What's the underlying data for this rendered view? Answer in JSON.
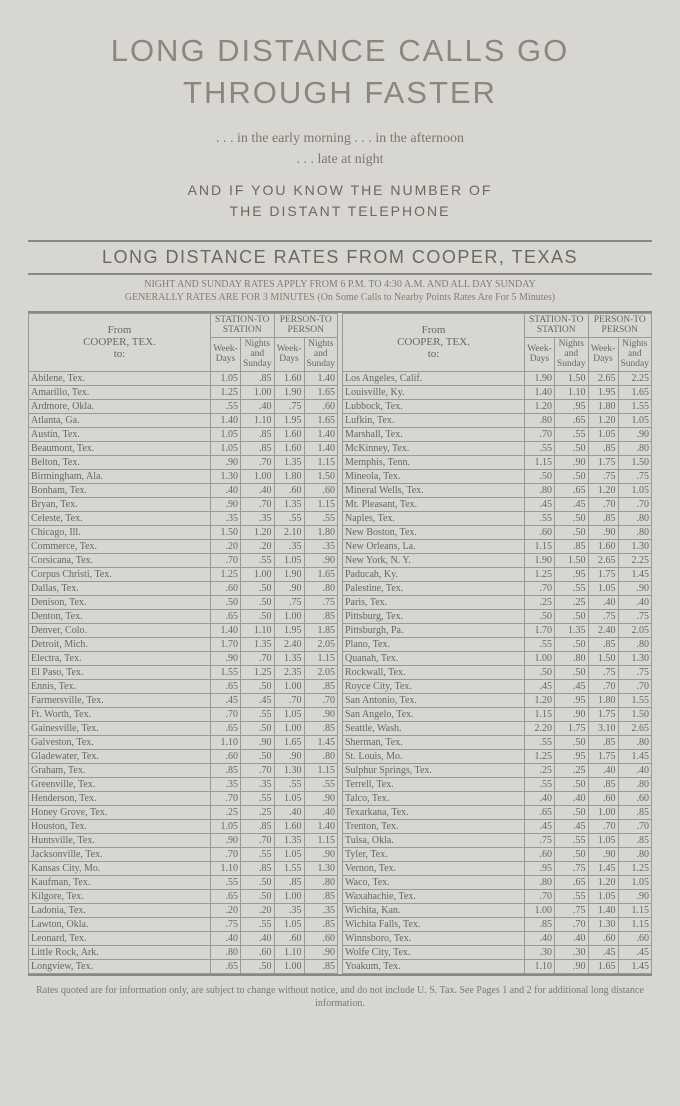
{
  "title_line1": "LONG DISTANCE CALLS GO",
  "title_line2": "THROUGH FASTER",
  "sub1": ". . . in the early morning   . . . in the afternoon",
  "sub2": ". . . late at night",
  "sub3a": "AND  IF  YOU  KNOW  THE  NUMBER  OF",
  "sub3b": "THE  DISTANT  TELEPHONE",
  "section_title": "LONG DISTANCE RATES FROM COOPER, TEXAS",
  "section_note1": "NIGHT AND SUNDAY RATES APPLY FROM 6 P.M. TO 4:30 A.M. AND ALL DAY SUNDAY",
  "section_note2": "GENERALLY RATES ARE FOR 3 MINUTES (On Some Calls to Nearby Points Rates Are For 5 Minutes)",
  "hdr_from": "From",
  "hdr_cooper": "COOPER, TEX.",
  "hdr_to": "to:",
  "hdr_sts": "STATION-TO STATION",
  "hdr_ptp": "PERSON-TO PERSON",
  "hdr_wd": "Week-Days",
  "hdr_ns": "Nights and Sunday",
  "footer": "Rates quoted are for information only, are subject to change without notice, and do not include U. S. Tax.\nSee Pages 1 and 2 for additional long distance information.",
  "left": [
    {
      "c": "Abilene, Tex.",
      "a": "1.05",
      "b": ".85",
      "d": "1.60",
      "e": "1.40"
    },
    {
      "c": "Amarillo, Tex.",
      "a": "1.25",
      "b": "1.00",
      "d": "1.90",
      "e": "1.65"
    },
    {
      "c": "Ardmore, Okla.",
      "a": ".55",
      "b": ".40",
      "d": ".75",
      "e": ".60"
    },
    {
      "c": "Atlanta, Ga.",
      "a": "1.40",
      "b": "1.10",
      "d": "1.95",
      "e": "1.65"
    },
    {
      "c": "Austin, Tex.",
      "a": "1.05",
      "b": ".85",
      "d": "1.60",
      "e": "1.40"
    },
    {
      "c": "Beaumont, Tex.",
      "a": "1.05",
      "b": ".85",
      "d": "1.60",
      "e": "1.40"
    },
    {
      "c": "Belton, Tex.",
      "a": ".90",
      "b": ".70",
      "d": "1.35",
      "e": "1.15"
    },
    {
      "c": "Birmingham, Ala.",
      "a": "1.30",
      "b": "1.00",
      "d": "1.80",
      "e": "1.50"
    },
    {
      "c": "Bonham, Tex.",
      "a": ".40",
      "b": ".40",
      "d": ".60",
      "e": ".60"
    },
    {
      "c": "Bryan, Tex.",
      "a": ".90",
      "b": ".70",
      "d": "1.35",
      "e": "1.15"
    },
    {
      "c": "Celeste, Tex.",
      "a": ".35",
      "b": ".35",
      "d": ".55",
      "e": ".55"
    },
    {
      "c": "Chicago, Ill.",
      "a": "1.50",
      "b": "1.20",
      "d": "2.10",
      "e": "1.80"
    },
    {
      "c": "Commerce, Tex.",
      "a": ".20",
      "b": ".20",
      "d": ".35",
      "e": ".35"
    },
    {
      "c": "Corsicana, Tex.",
      "a": ".70",
      "b": ".55",
      "d": "1.05",
      "e": ".90"
    },
    {
      "c": "Corpus Christi, Tex.",
      "a": "1.25",
      "b": "1.00",
      "d": "1.90",
      "e": "1.65"
    },
    {
      "c": "Dallas, Tex.",
      "a": ".60",
      "b": ".50",
      "d": ".90",
      "e": ".80"
    },
    {
      "c": "Denison, Tex.",
      "a": ".50",
      "b": ".50",
      "d": ".75",
      "e": ".75"
    },
    {
      "c": "Denton, Tex.",
      "a": ".65",
      "b": ".50",
      "d": "1.00",
      "e": ".85"
    },
    {
      "c": "Denver, Colo.",
      "a": "1.40",
      "b": "1.10",
      "d": "1.95",
      "e": "1.85"
    },
    {
      "c": "Detroit, Mich.",
      "a": "1.70",
      "b": "1.35",
      "d": "2.40",
      "e": "2.05"
    },
    {
      "c": "Electra, Tex.",
      "a": ".90",
      "b": ".70",
      "d": "1.35",
      "e": "1.15"
    },
    {
      "c": "El Paso, Tex.",
      "a": "1.55",
      "b": "1.25",
      "d": "2.35",
      "e": "2.05"
    },
    {
      "c": "Ennis, Tex.",
      "a": ".65",
      "b": ".50",
      "d": "1.00",
      "e": ".85"
    },
    {
      "c": "Farmersville, Tex.",
      "a": ".45",
      "b": ".45",
      "d": ".70",
      "e": ".70"
    },
    {
      "c": "Ft. Worth, Tex.",
      "a": ".70",
      "b": ".55",
      "d": "1.05",
      "e": ".90"
    },
    {
      "c": "Gainesville, Tex.",
      "a": ".65",
      "b": ".50",
      "d": "1.00",
      "e": ".85"
    },
    {
      "c": "Galveston, Tex.",
      "a": "1.10",
      "b": ".90",
      "d": "1.65",
      "e": "1.45"
    },
    {
      "c": "Gladewater, Tex.",
      "a": ".60",
      "b": ".50",
      "d": ".90",
      "e": ".80"
    },
    {
      "c": "Graham, Tex.",
      "a": ".85",
      "b": ".70",
      "d": "1.30",
      "e": "1.15"
    },
    {
      "c": "Greenville, Tex.",
      "a": ".35",
      "b": ".35",
      "d": ".55",
      "e": ".55"
    },
    {
      "c": "Henderson, Tex.",
      "a": ".70",
      "b": ".55",
      "d": "1.05",
      "e": ".90"
    },
    {
      "c": "Honey Grove, Tex.",
      "a": ".25",
      "b": ".25",
      "d": ".40",
      "e": ".40"
    },
    {
      "c": "Houston, Tex.",
      "a": "1.05",
      "b": ".85",
      "d": "1.60",
      "e": "1.40"
    },
    {
      "c": "Huntsville, Tex.",
      "a": ".90",
      "b": ".70",
      "d": "1.35",
      "e": "1.15"
    },
    {
      "c": "Jacksonville, Tex.",
      "a": ".70",
      "b": ".55",
      "d": "1.05",
      "e": ".90"
    },
    {
      "c": "Kansas City, Mo.",
      "a": "1.10",
      "b": ".85",
      "d": "1.55",
      "e": "1.30"
    },
    {
      "c": "Kaufman, Tex.",
      "a": ".55",
      "b": ".50",
      "d": ".85",
      "e": ".80"
    },
    {
      "c": "Kilgore, Tex.",
      "a": ".65",
      "b": ".50",
      "d": "1.00",
      "e": ".85"
    },
    {
      "c": "Ladonia, Tex.",
      "a": ".20",
      "b": ".20",
      "d": ".35",
      "e": ".35"
    },
    {
      "c": "Lawton, Okla.",
      "a": ".75",
      "b": ".55",
      "d": "1.05",
      "e": ".85"
    },
    {
      "c": "Leonard, Tex.",
      "a": ".40",
      "b": ".40",
      "d": ".60",
      "e": ".60"
    },
    {
      "c": "Little Rock, Ark.",
      "a": ".80",
      "b": ".60",
      "d": "1.10",
      "e": ".90"
    },
    {
      "c": "Longview, Tex.",
      "a": ".65",
      "b": ".50",
      "d": "1.00",
      "e": ".85"
    }
  ],
  "right": [
    {
      "c": "Los Angeles, Calif.",
      "a": "1.90",
      "b": "1.50",
      "d": "2.65",
      "e": "2.25"
    },
    {
      "c": "Louisville, Ky.",
      "a": "1.40",
      "b": "1.10",
      "d": "1.95",
      "e": "1.65"
    },
    {
      "c": "Lubbock, Tex.",
      "a": "1.20",
      "b": ".95",
      "d": "1.80",
      "e": "1.55"
    },
    {
      "c": "Lufkin, Tex.",
      "a": ".80",
      "b": ".65",
      "d": "1.20",
      "e": "1.05"
    },
    {
      "c": "Marshall, Tex.",
      "a": ".70",
      "b": ".55",
      "d": "1.05",
      "e": ".90"
    },
    {
      "c": "McKinney, Tex.",
      "a": ".55",
      "b": ".50",
      "d": ".85",
      "e": ".80"
    },
    {
      "c": "Memphis, Tenn.",
      "a": "1.15",
      "b": ".90",
      "d": "1.75",
      "e": "1.50"
    },
    {
      "c": "Mineola, Tex.",
      "a": ".50",
      "b": ".50",
      "d": ".75",
      "e": ".75"
    },
    {
      "c": "Mineral Wells, Tex.",
      "a": ".80",
      "b": ".65",
      "d": "1.20",
      "e": "1.05"
    },
    {
      "c": "Mt. Pleasant, Tex.",
      "a": ".45",
      "b": ".45",
      "d": ".70",
      "e": ".70"
    },
    {
      "c": "Naples, Tex.",
      "a": ".55",
      "b": ".50",
      "d": ".85",
      "e": ".80"
    },
    {
      "c": "New Boston, Tex.",
      "a": ".60",
      "b": ".50",
      "d": ".90",
      "e": ".80"
    },
    {
      "c": "New Orleans, La.",
      "a": "1.15",
      "b": ".85",
      "d": "1.60",
      "e": "1.30"
    },
    {
      "c": "New York, N. Y.",
      "a": "1.90",
      "b": "1.50",
      "d": "2.65",
      "e": "2.25"
    },
    {
      "c": "Paducah, Ky.",
      "a": "1.25",
      "b": ".95",
      "d": "1.75",
      "e": "1.45"
    },
    {
      "c": "Palestine, Tex.",
      "a": ".70",
      "b": ".55",
      "d": "1.05",
      "e": ".90"
    },
    {
      "c": "Paris, Tex.",
      "a": ".25",
      "b": ".25",
      "d": ".40",
      "e": ".40"
    },
    {
      "c": "Pittsburg, Tex.",
      "a": ".50",
      "b": ".50",
      "d": ".75",
      "e": ".75"
    },
    {
      "c": "Pittsburgh, Pa.",
      "a": "1.70",
      "b": "1.35",
      "d": "2.40",
      "e": "2.05"
    },
    {
      "c": "Plano, Tex.",
      "a": ".55",
      "b": ".50",
      "d": ".85",
      "e": ".80"
    },
    {
      "c": "Quanah, Tex.",
      "a": "1.00",
      "b": ".80",
      "d": "1.50",
      "e": "1.30"
    },
    {
      "c": "Rockwall, Tex.",
      "a": ".50",
      "b": ".50",
      "d": ".75",
      "e": ".75"
    },
    {
      "c": "Royce City, Tex.",
      "a": ".45",
      "b": ".45",
      "d": ".70",
      "e": ".70"
    },
    {
      "c": "San Antonio, Tex.",
      "a": "1.20",
      "b": ".95",
      "d": "1.80",
      "e": "1.55"
    },
    {
      "c": "San Angelo, Tex.",
      "a": "1.15",
      "b": ".90",
      "d": "1.75",
      "e": "1.50"
    },
    {
      "c": "Seattle, Wash.",
      "a": "2.20",
      "b": "1.75",
      "d": "3.10",
      "e": "2.65"
    },
    {
      "c": "Sherman, Tex.",
      "a": ".55",
      "b": ".50",
      "d": ".85",
      "e": ".80"
    },
    {
      "c": "St. Louis, Mo.",
      "a": "1.25",
      "b": ".95",
      "d": "1.75",
      "e": "1.45"
    },
    {
      "c": "Sulphur Springs, Tex.",
      "a": ".25",
      "b": ".25",
      "d": ".40",
      "e": ".40"
    },
    {
      "c": "Terrell, Tex.",
      "a": ".55",
      "b": ".50",
      "d": ".85",
      "e": ".80"
    },
    {
      "c": "Talco, Tex.",
      "a": ".40",
      "b": ".40",
      "d": ".60",
      "e": ".60"
    },
    {
      "c": "Texarkana, Tex.",
      "a": ".65",
      "b": ".50",
      "d": "1.00",
      "e": ".85"
    },
    {
      "c": "Trenton, Tex.",
      "a": ".45",
      "b": ".45",
      "d": ".70",
      "e": ".70"
    },
    {
      "c": "Tulsa, Okla.",
      "a": ".75",
      "b": ".55",
      "d": "1.05",
      "e": ".85"
    },
    {
      "c": "Tyler, Tex.",
      "a": ".60",
      "b": ".50",
      "d": ".90",
      "e": ".80"
    },
    {
      "c": "Vernon, Tex.",
      "a": ".95",
      "b": ".75",
      "d": "1.45",
      "e": "1.25"
    },
    {
      "c": "Waco, Tex.",
      "a": ".80",
      "b": ".65",
      "d": "1.20",
      "e": "1.05"
    },
    {
      "c": "Waxahachie, Tex.",
      "a": ".70",
      "b": ".55",
      "d": "1.05",
      "e": ".90"
    },
    {
      "c": "Wichita, Kan.",
      "a": "1.00",
      "b": ".75",
      "d": "1.40",
      "e": "1.15"
    },
    {
      "c": "Wichita Falls, Tex.",
      "a": ".85",
      "b": ".70",
      "d": "1.30",
      "e": "1.15"
    },
    {
      "c": "Winnsboro, Tex.",
      "a": ".40",
      "b": ".40",
      "d": ".60",
      "e": ".60"
    },
    {
      "c": "Wolfe City, Tex.",
      "a": ".30",
      "b": ".30",
      "d": ".45",
      "e": ".45"
    },
    {
      "c": "Yoakum, Tex.",
      "a": "1.10",
      "b": ".90",
      "d": "1.65",
      "e": "1.45"
    }
  ]
}
